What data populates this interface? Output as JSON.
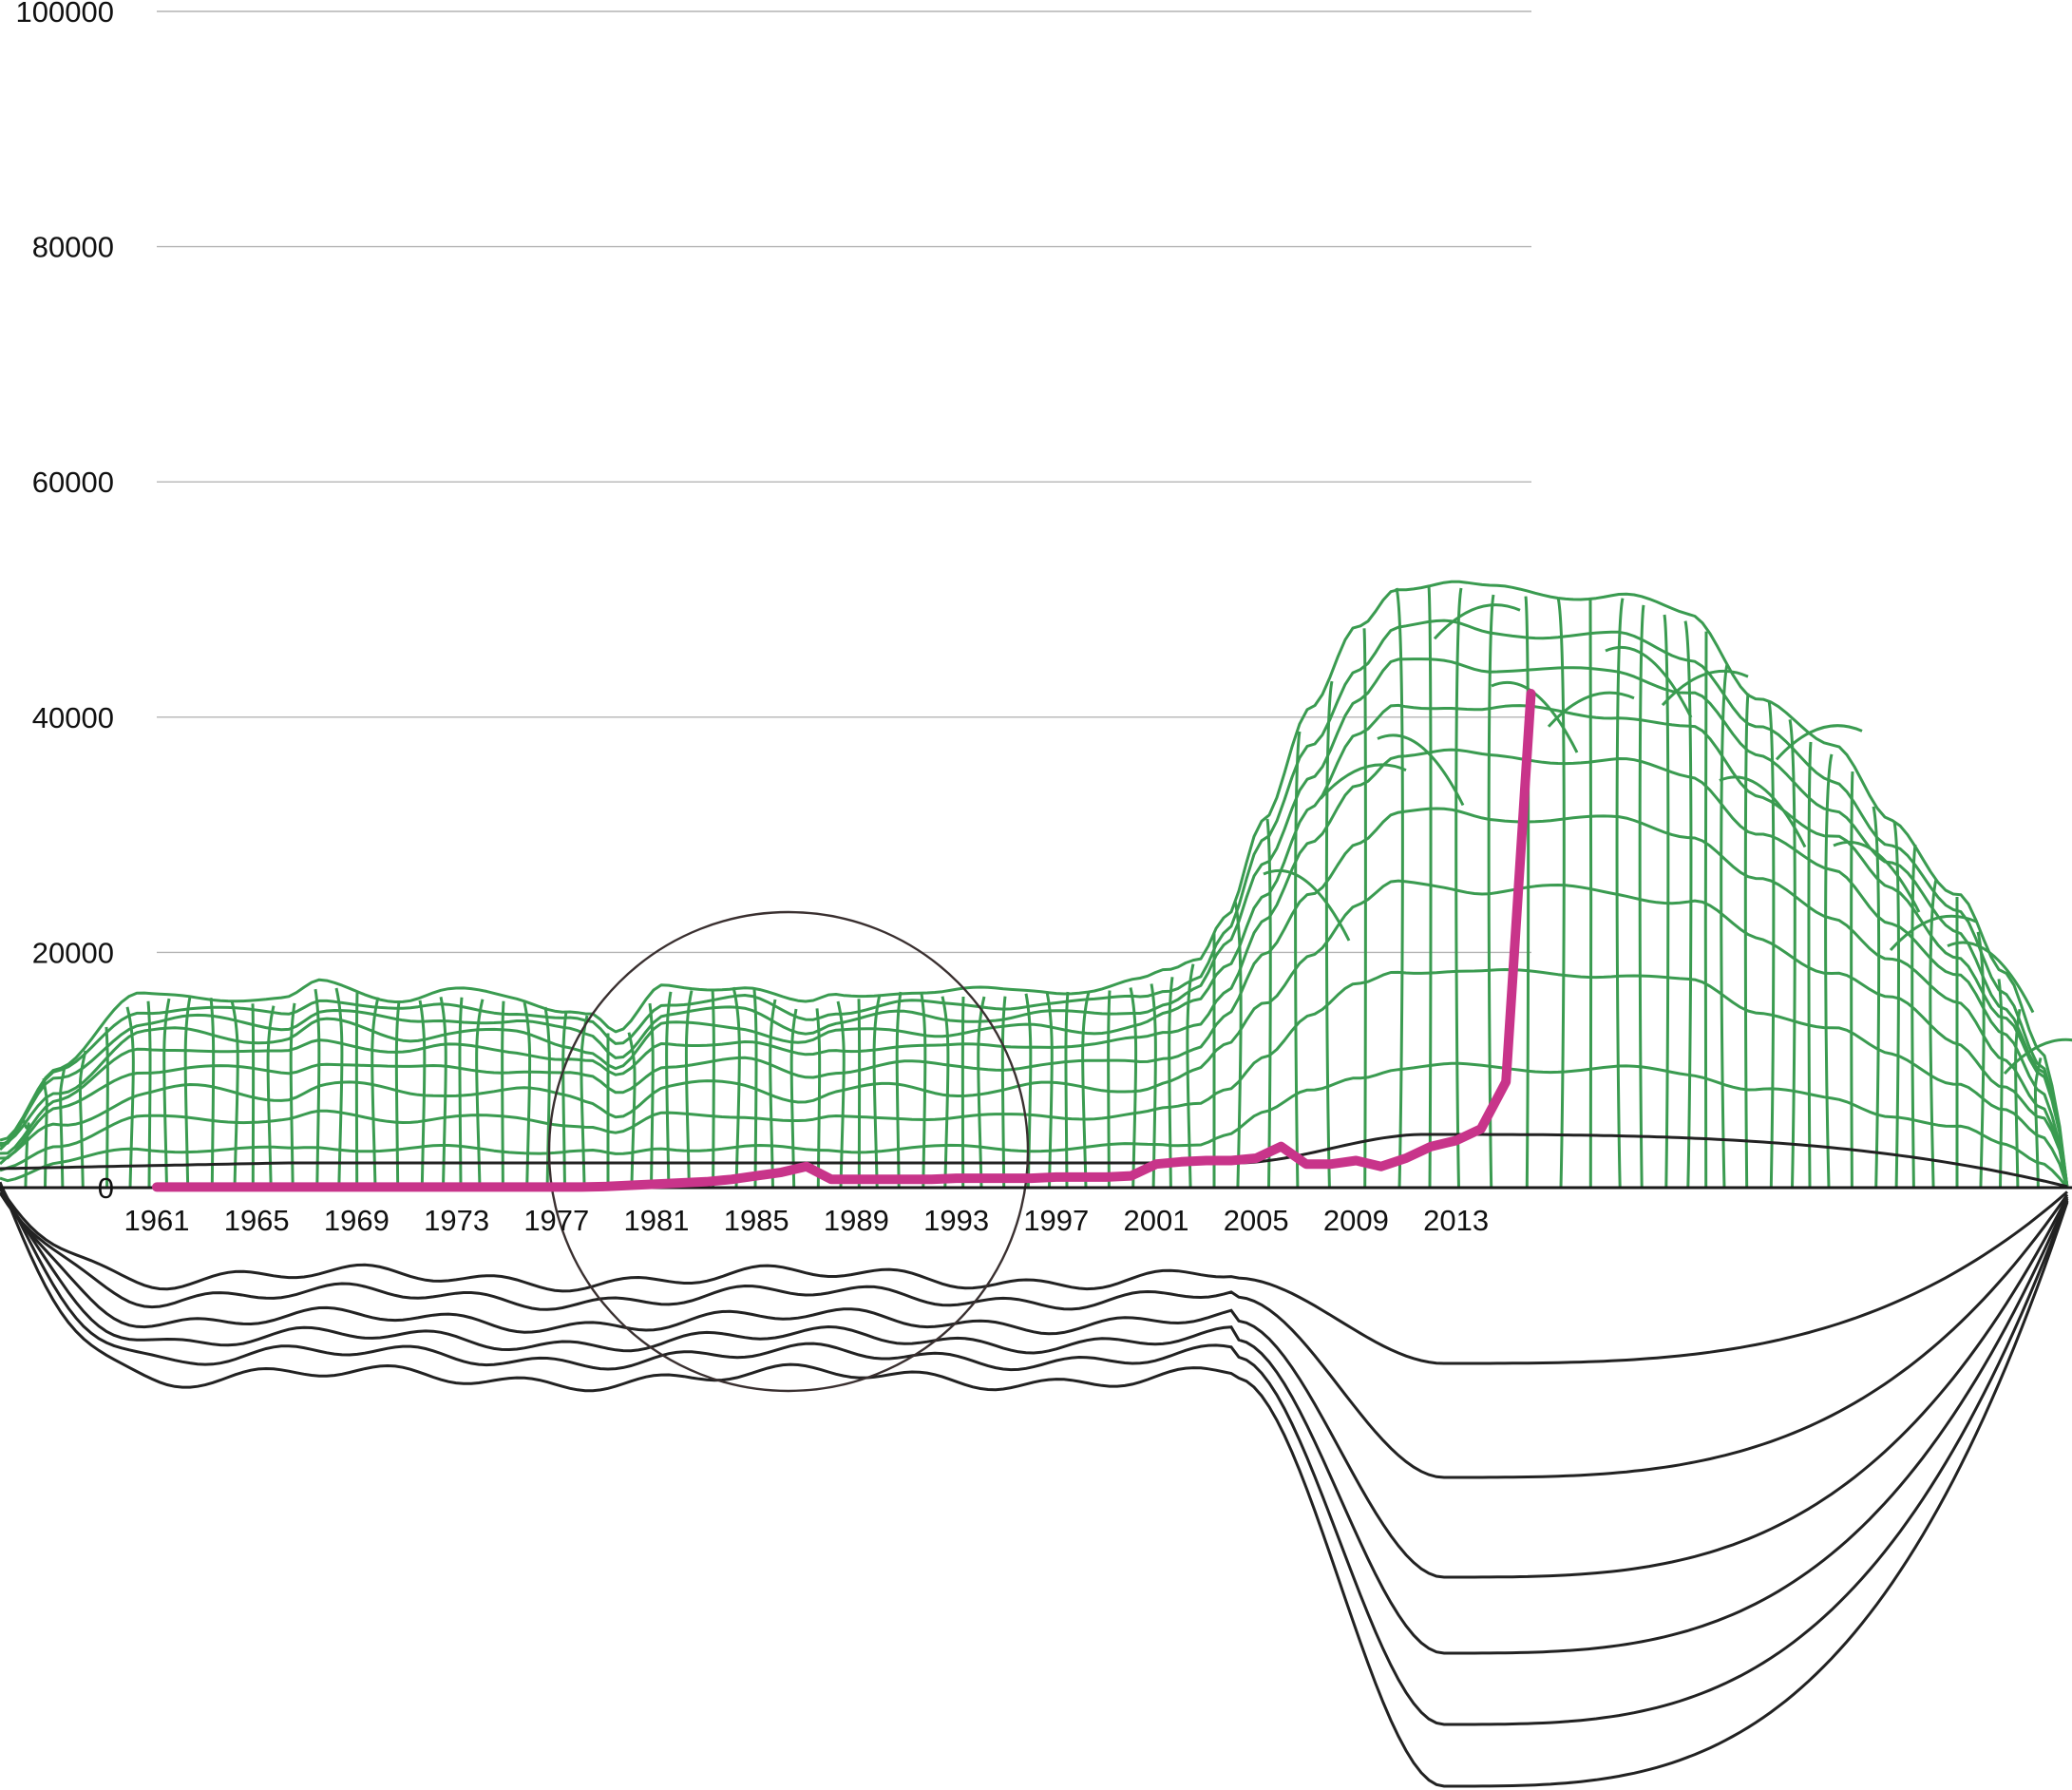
{
  "chart_data": {
    "type": "line",
    "title": "",
    "xlabel": "",
    "ylabel": "",
    "ylim": [
      0,
      100000
    ],
    "y_ticks": [
      "0",
      "20000",
      "40000",
      "60000",
      "80000",
      "100000"
    ],
    "x_ticks": [
      "1961",
      "1965",
      "1969",
      "1973",
      "1977",
      "1981",
      "1985",
      "1989",
      "1993",
      "1997",
      "2001",
      "2005",
      "2009",
      "2013"
    ],
    "grid": true,
    "legend": "none",
    "x": [
      1961,
      1962,
      1963,
      1964,
      1965,
      1966,
      1967,
      1968,
      1969,
      1970,
      1971,
      1972,
      1973,
      1974,
      1975,
      1976,
      1977,
      1978,
      1979,
      1980,
      1981,
      1982,
      1983,
      1984,
      1985,
      1986,
      1987,
      1988,
      1989,
      1990,
      1991,
      1992,
      1993,
      1994,
      1995,
      1996,
      1997,
      1998,
      1999,
      2000,
      2001,
      2002,
      2003,
      2004,
      2005,
      2006,
      2007,
      2008,
      2009,
      2010,
      2011,
      2012,
      2013,
      2014,
      2015,
      2016
    ],
    "series": [
      {
        "values": [
          50,
          50,
          50,
          50,
          50,
          50,
          50,
          50,
          50,
          50,
          50,
          50,
          50,
          50,
          50,
          50,
          50,
          50,
          100,
          200,
          300,
          400,
          500,
          700,
          1000,
          1300,
          1800,
          700,
          700,
          700,
          700,
          700,
          800,
          800,
          800,
          800,
          900,
          900,
          900,
          1000,
          2000,
          2200,
          2300,
          2300,
          2500,
          3500,
          2000,
          2000,
          2300,
          1800,
          2500,
          3500,
          4000,
          5000,
          9000,
          42000
        ]
      }
    ],
    "colors": {
      "main_line": "#c8348a",
      "mesh": "#3a9b50",
      "shadow": "#222222",
      "grid": "#b4b4b4"
    }
  }
}
